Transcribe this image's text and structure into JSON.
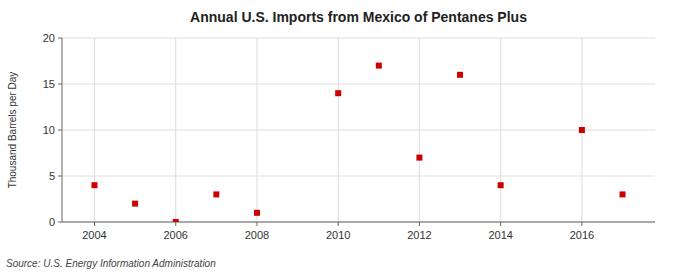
{
  "chart_data": {
    "type": "scatter",
    "title": "Annual U.S. Imports from Mexico of Pentanes Plus",
    "ylabel": "Thousand Barrels per Day",
    "source": "Source: U.S. Energy Information Administration",
    "x": [
      2004,
      2005,
      2006,
      2007,
      2008,
      2010,
      2011,
      2012,
      2013,
      2014,
      2016,
      2017
    ],
    "values": [
      4,
      2,
      0,
      3,
      1,
      14,
      17,
      7,
      16,
      4,
      10,
      3
    ],
    "color": "#cc0000",
    "marker": "square",
    "xlim": [
      2003.2,
      2017.8
    ],
    "ylim": [
      0,
      20
    ],
    "xticks": [
      2004,
      2006,
      2008,
      2010,
      2012,
      2014,
      2016
    ],
    "yticks": [
      0,
      5,
      10,
      15,
      20
    ],
    "grid": true
  }
}
